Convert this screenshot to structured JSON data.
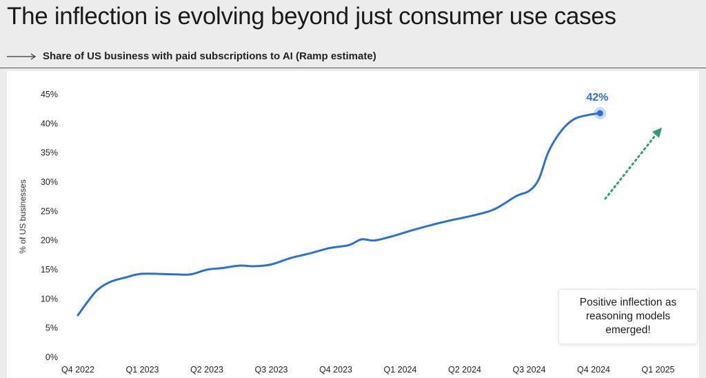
{
  "header": {
    "title": "The inflection is evolving beyond just consumer use cases",
    "subtitle": "Share of US business with paid subscriptions to AI (Ramp estimate)"
  },
  "chart_data": {
    "type": "line",
    "ylabel": "% of US businesses",
    "ylim": [
      0,
      45
    ],
    "yticks": [
      "0%",
      "5%",
      "10%",
      "15%",
      "20%",
      "25%",
      "30%",
      "35%",
      "40%",
      "45%"
    ],
    "xticks": [
      "Q4 2022",
      "Q1 2023",
      "Q2 2023",
      "Q3 2023",
      "Q4 2023",
      "Q1 2024",
      "Q2 2024",
      "Q3 2024",
      "Q4 2024",
      "Q1 2025"
    ],
    "grid": false,
    "line_color": "#2a6fd6",
    "series": [
      {
        "values": [
          [
            0.0,
            7.2
          ],
          [
            0.15,
            9.5
          ],
          [
            0.3,
            11.5
          ],
          [
            0.5,
            12.9
          ],
          [
            0.75,
            13.7
          ],
          [
            1.0,
            14.3
          ],
          [
            1.5,
            14.2
          ],
          [
            1.75,
            14.2
          ],
          [
            2.0,
            15.0
          ],
          [
            2.25,
            15.3
          ],
          [
            2.5,
            15.7
          ],
          [
            2.75,
            15.6
          ],
          [
            3.0,
            15.9
          ],
          [
            3.3,
            17.0
          ],
          [
            3.6,
            17.8
          ],
          [
            3.9,
            18.7
          ],
          [
            4.2,
            19.2
          ],
          [
            4.4,
            20.2
          ],
          [
            4.6,
            20.0
          ],
          [
            4.9,
            20.8
          ],
          [
            5.2,
            21.8
          ],
          [
            5.5,
            22.7
          ],
          [
            5.8,
            23.5
          ],
          [
            6.1,
            24.2
          ],
          [
            6.45,
            25.3
          ],
          [
            6.8,
            27.6
          ],
          [
            7.0,
            28.5
          ],
          [
            7.15,
            30.5
          ],
          [
            7.3,
            35.2
          ],
          [
            7.5,
            38.8
          ],
          [
            7.7,
            40.8
          ],
          [
            7.92,
            41.5
          ],
          [
            8.1,
            41.8
          ]
        ]
      }
    ],
    "end_label": "42%",
    "annotation": "Positive inflection as\nreasoning models\nemerged!",
    "arrow_color": "#2e9e6a"
  }
}
